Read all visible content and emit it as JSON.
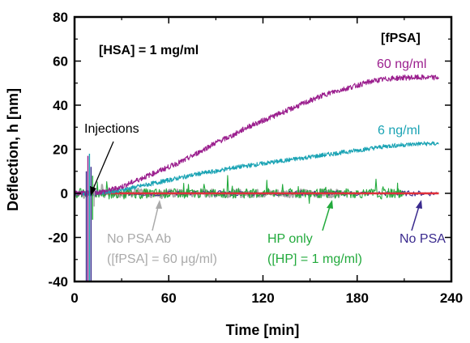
{
  "chart_data": {
    "type": "line",
    "xlabel": "Time [min]",
    "ylabel": "Deflection, h [nm]",
    "xlim": [
      0,
      240
    ],
    "ylim": [
      -40,
      80
    ],
    "xticks": [
      "0",
      "60",
      "120",
      "180",
      "240"
    ],
    "yticks": [
      "-40",
      "-20",
      "0",
      "20",
      "40",
      "60",
      "80"
    ],
    "grid": false,
    "series": [
      {
        "name": "60 ng/ml",
        "color": "#9b1f8e",
        "x": [
          0,
          10,
          20,
          30,
          40,
          50,
          60,
          70,
          80,
          90,
          100,
          110,
          120,
          130,
          140,
          150,
          160,
          170,
          180,
          190,
          200,
          210,
          220,
          232
        ],
        "y": [
          0,
          0,
          1,
          3,
          6,
          9,
          12,
          15,
          19,
          23,
          26,
          30,
          33,
          36,
          39,
          42,
          45,
          47,
          49,
          51,
          52,
          52.5,
          52.5,
          52.5
        ],
        "label": "60 ng/ml"
      },
      {
        "name": "6 ng/ml",
        "color": "#1aa3b4",
        "x": [
          0,
          10,
          20,
          30,
          40,
          50,
          60,
          70,
          80,
          90,
          100,
          110,
          120,
          130,
          140,
          150,
          160,
          170,
          180,
          190,
          200,
          210,
          220,
          232
        ],
        "y": [
          0,
          0,
          0.5,
          1.5,
          3,
          4.5,
          6,
          7.5,
          9,
          10,
          11.5,
          12.5,
          13.5,
          14.5,
          15.5,
          16.5,
          17.5,
          18.5,
          19.5,
          20.5,
          21.5,
          22,
          22.5,
          22.5
        ],
        "label": "6 ng/ml"
      },
      {
        "name": "HP only",
        "color": "#22aa3c",
        "x": [
          0,
          20,
          40,
          60,
          80,
          100,
          120,
          140,
          160,
          180,
          200,
          210
        ],
        "y": [
          0,
          0,
          0,
          0,
          0,
          0,
          0,
          0,
          0,
          0,
          0,
          0
        ]
      },
      {
        "name": "No PSA Ab",
        "color": "#aaaaaa",
        "x": [
          0,
          20,
          40,
          60,
          80,
          100,
          120,
          140,
          160,
          170
        ],
        "y": [
          0,
          0,
          0,
          0,
          0,
          0,
          0,
          0,
          0,
          0
        ]
      },
      {
        "name": "No PSA",
        "color": "#3a2a8e",
        "x": [
          0,
          40,
          80,
          120,
          160,
          200,
          232
        ],
        "y": [
          0,
          0,
          0,
          0,
          0,
          0,
          0
        ]
      },
      {
        "name": "reference",
        "color": "#e0303a",
        "x": [
          0,
          232
        ],
        "y": [
          0,
          0
        ]
      }
    ],
    "annotations": {
      "hsa": "[HSA] = 1 mg/ml",
      "fpsa": "[fPSA]",
      "label_60": "60 ng/ml",
      "label_6": "6 ng/ml",
      "injections": "Injections",
      "no_psa_ab_1": "No PSA Ab",
      "no_psa_ab_2": "([fPSA] = 60 μg/ml)",
      "hp_only_1": "HP only",
      "hp_only_2": "([HP] = 1 mg/ml)",
      "no_psa": "No PSA"
    }
  }
}
